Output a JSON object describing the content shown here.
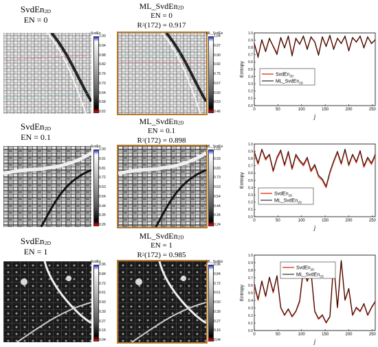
{
  "rows": [
    {
      "left_title_main": "SvdEn",
      "left_title_sub": "2D",
      "left_param": "EN = 0",
      "right_title_main": "ML_SvdEn",
      "right_title_sub": "2D",
      "right_param": "EN = 0",
      "r2_label": "R",
      "r2_sup": "2",
      "r2_rest": "(172) = 0.917",
      "left_cbar_title": "SvdEn",
      "left_cbar_ticks": [
        "1.00",
        "0.94",
        "0.88",
        "0.82",
        "0.76",
        "0.70",
        "0.64",
        "0.58",
        "0.52"
      ],
      "right_cbar_title": "ML_SvdEn",
      "right_cbar_ticks": [
        "1.04",
        "0.97",
        "0.90",
        "0.82",
        "0.75",
        "0.67",
        "0.60",
        "0.53",
        "0.46"
      ]
    },
    {
      "left_title_main": "SvdEn",
      "left_title_sub": "2D",
      "left_param": "EN = 0.1",
      "right_title_main": "ML_SvdEn",
      "right_title_sub": "2D",
      "right_param": "EN = 0.1",
      "r2_label": "R",
      "r2_sup": "2",
      "r2_rest": "(172) = 0.898",
      "left_cbar_title": "SvdEn",
      "left_cbar_ticks": [
        "1.00",
        "0.91",
        "0.81",
        "0.72",
        "0.63",
        "0.54",
        "0.44",
        "0.35",
        "0.26"
      ],
      "right_cbar_title": "ML_SvdEn",
      "right_cbar_ticks": [
        "1.03",
        "0.93",
        "0.83",
        "0.73",
        "0.63",
        "0.54",
        "0.44",
        "0.34",
        "0.24"
      ]
    },
    {
      "left_title_main": "SvdEn",
      "left_title_sub": "2D",
      "left_param": "EN = 1",
      "right_title_main": "ML_SvdEn",
      "right_title_sub": "2D",
      "right_param": "EN = 1",
      "r2_label": "R",
      "r2_sup": "2",
      "r2_rest": "(172) = 0.985",
      "left_cbar_title": "SvdEn",
      "left_cbar_ticks": [
        "0.96",
        "0.84",
        "0.72",
        "0.61",
        "0.50",
        "0.39",
        "0.27",
        "0.16",
        "0.04"
      ],
      "right_cbar_title": "ML_SvdEn",
      "right_cbar_ticks": [
        "0.96",
        "0.84",
        "0.72",
        "0.61",
        "0.50",
        "0.39",
        "0.27",
        "0.16",
        "0.04"
      ]
    }
  ],
  "colors": {
    "frame": "#b5792a",
    "series1": "#e8462e",
    "series2": "#000000",
    "cbar_top": "#1a2fd8",
    "cbar_bottom": "#ff0000"
  },
  "chart_data": [
    {
      "type": "line",
      "xlabel": "j",
      "ylabel": "Entropy",
      "xlim": [
        0,
        256
      ],
      "ylim": [
        0,
        1.0
      ],
      "xticks": [
        "0",
        "50",
        "100",
        "150",
        "200",
        "250"
      ],
      "yticks": [
        "0.0",
        "0.1",
        "0.2",
        "0.3",
        "0.4",
        "0.5",
        "0.6",
        "0.7",
        "0.8",
        "0.9",
        "1.0"
      ],
      "legend_placement": "middle",
      "legend": [
        {
          "main": "SvdEn",
          "sub": "2D"
        },
        {
          "main": "ML_SvdEn",
          "sub": "2D"
        }
      ],
      "series": [
        {
          "name": "SvdEn2D",
          "x": [
            0,
            8,
            16,
            24,
            32,
            40,
            48,
            56,
            64,
            72,
            80,
            88,
            96,
            104,
            112,
            120,
            128,
            136,
            144,
            152,
            160,
            168,
            176,
            184,
            192,
            200,
            208,
            216,
            224,
            232,
            240,
            248,
            256
          ],
          "values": [
            0.85,
            0.68,
            0.9,
            0.75,
            0.92,
            0.82,
            0.72,
            0.93,
            0.8,
            0.95,
            0.7,
            0.92,
            0.85,
            0.95,
            0.78,
            0.94,
            0.88,
            0.7,
            0.94,
            0.82,
            0.96,
            0.78,
            0.92,
            0.86,
            0.95,
            0.76,
            0.93,
            0.88,
            0.95,
            0.8,
            0.94,
            0.86,
            0.9
          ]
        },
        {
          "name": "ML_SvdEn2D",
          "x": [
            0,
            8,
            16,
            24,
            32,
            40,
            48,
            56,
            64,
            72,
            80,
            88,
            96,
            104,
            112,
            120,
            128,
            136,
            144,
            152,
            160,
            168,
            176,
            184,
            192,
            200,
            208,
            216,
            224,
            232,
            240,
            248,
            256
          ],
          "values": [
            0.86,
            0.66,
            0.91,
            0.74,
            0.93,
            0.81,
            0.7,
            0.94,
            0.79,
            0.96,
            0.68,
            0.93,
            0.84,
            0.96,
            0.77,
            0.95,
            0.87,
            0.69,
            0.95,
            0.81,
            0.97,
            0.77,
            0.93,
            0.85,
            0.96,
            0.75,
            0.94,
            0.87,
            0.96,
            0.79,
            0.95,
            0.85,
            0.91
          ]
        }
      ]
    },
    {
      "type": "line",
      "xlabel": "j",
      "ylabel": "Entropy",
      "xlim": [
        0,
        256
      ],
      "ylim": [
        0,
        1.0
      ],
      "xticks": [
        "0",
        "50",
        "100",
        "150",
        "200",
        "250"
      ],
      "yticks": [
        "0.0",
        "0.1",
        "0.2",
        "0.3",
        "0.4",
        "0.5",
        "0.6",
        "0.7",
        "0.8",
        "0.9",
        "1.0"
      ],
      "legend_placement": "lower-left",
      "legend": [
        {
          "main": "SvdEn",
          "sub": "2D"
        },
        {
          "main": "ML_SvdEn",
          "sub": "2D"
        }
      ],
      "series": [
        {
          "name": "SvdEn2D",
          "x": [
            0,
            8,
            16,
            24,
            32,
            40,
            48,
            56,
            64,
            72,
            80,
            88,
            96,
            104,
            112,
            120,
            128,
            136,
            144,
            152,
            160,
            168,
            176,
            184,
            192,
            200,
            208,
            216,
            224,
            232,
            240,
            248,
            256
          ],
          "values": [
            0.88,
            0.72,
            0.92,
            0.78,
            0.85,
            0.62,
            0.8,
            0.9,
            0.7,
            0.88,
            0.65,
            0.84,
            0.76,
            0.7,
            0.8,
            0.62,
            0.7,
            0.55,
            0.5,
            0.4,
            0.6,
            0.75,
            0.88,
            0.72,
            0.92,
            0.7,
            0.85,
            0.74,
            0.9,
            0.68,
            0.8,
            0.72,
            0.84
          ]
        },
        {
          "name": "ML_SvdEn2D",
          "x": [
            0,
            8,
            16,
            24,
            32,
            40,
            48,
            56,
            64,
            72,
            80,
            88,
            96,
            104,
            112,
            120,
            128,
            136,
            144,
            152,
            160,
            168,
            176,
            184,
            192,
            200,
            208,
            216,
            224,
            232,
            240,
            248,
            256
          ],
          "values": [
            0.9,
            0.74,
            0.93,
            0.8,
            0.86,
            0.64,
            0.82,
            0.92,
            0.72,
            0.9,
            0.67,
            0.86,
            0.78,
            0.72,
            0.82,
            0.64,
            0.72,
            0.57,
            0.52,
            0.42,
            0.62,
            0.77,
            0.9,
            0.74,
            0.93,
            0.72,
            0.86,
            0.76,
            0.91,
            0.7,
            0.82,
            0.74,
            0.86
          ]
        }
      ]
    },
    {
      "type": "line",
      "xlabel": "j",
      "ylabel": "Entropy",
      "xlim": [
        0,
        256
      ],
      "ylim": [
        0,
        1.0
      ],
      "xticks": [
        "0",
        "50",
        "100",
        "150",
        "200",
        "250"
      ],
      "yticks": [
        "0.0",
        "0.1",
        "0.2",
        "0.3",
        "0.4",
        "0.5",
        "0.6",
        "0.7",
        "0.8",
        "0.9",
        "1.0"
      ],
      "legend_placement": "top-right",
      "legend": [
        {
          "main": "SvdEn",
          "sub": "2D"
        },
        {
          "main": "ML_SvdEn",
          "sub": "2D"
        }
      ],
      "series": [
        {
          "name": "SvdEn2D",
          "x": [
            0,
            8,
            16,
            24,
            32,
            40,
            48,
            56,
            64,
            72,
            80,
            88,
            96,
            104,
            112,
            120,
            128,
            136,
            144,
            152,
            160,
            168,
            176,
            184,
            192,
            200,
            208,
            216,
            224,
            232,
            240,
            248,
            256
          ],
          "values": [
            0.6,
            0.4,
            0.65,
            0.45,
            0.7,
            0.5,
            0.72,
            0.3,
            0.2,
            0.28,
            0.18,
            0.25,
            0.38,
            0.82,
            0.65,
            0.78,
            0.25,
            0.15,
            0.2,
            0.1,
            0.18,
            0.9,
            0.3,
            0.92,
            0.4,
            0.55,
            0.2,
            0.3,
            0.25,
            0.35,
            0.2,
            0.3,
            0.38
          ]
        },
        {
          "name": "ML_SvdEn2D",
          "x": [
            0,
            8,
            16,
            24,
            32,
            40,
            48,
            56,
            64,
            72,
            80,
            88,
            96,
            104,
            112,
            120,
            128,
            136,
            144,
            152,
            160,
            168,
            176,
            184,
            192,
            200,
            208,
            216,
            224,
            232,
            240,
            248,
            256
          ],
          "values": [
            0.62,
            0.42,
            0.66,
            0.46,
            0.71,
            0.52,
            0.73,
            0.31,
            0.21,
            0.29,
            0.19,
            0.26,
            0.4,
            0.83,
            0.66,
            0.79,
            0.26,
            0.16,
            0.21,
            0.11,
            0.19,
            0.91,
            0.31,
            0.93,
            0.41,
            0.56,
            0.21,
            0.31,
            0.26,
            0.36,
            0.21,
            0.31,
            0.39
          ]
        }
      ]
    }
  ]
}
